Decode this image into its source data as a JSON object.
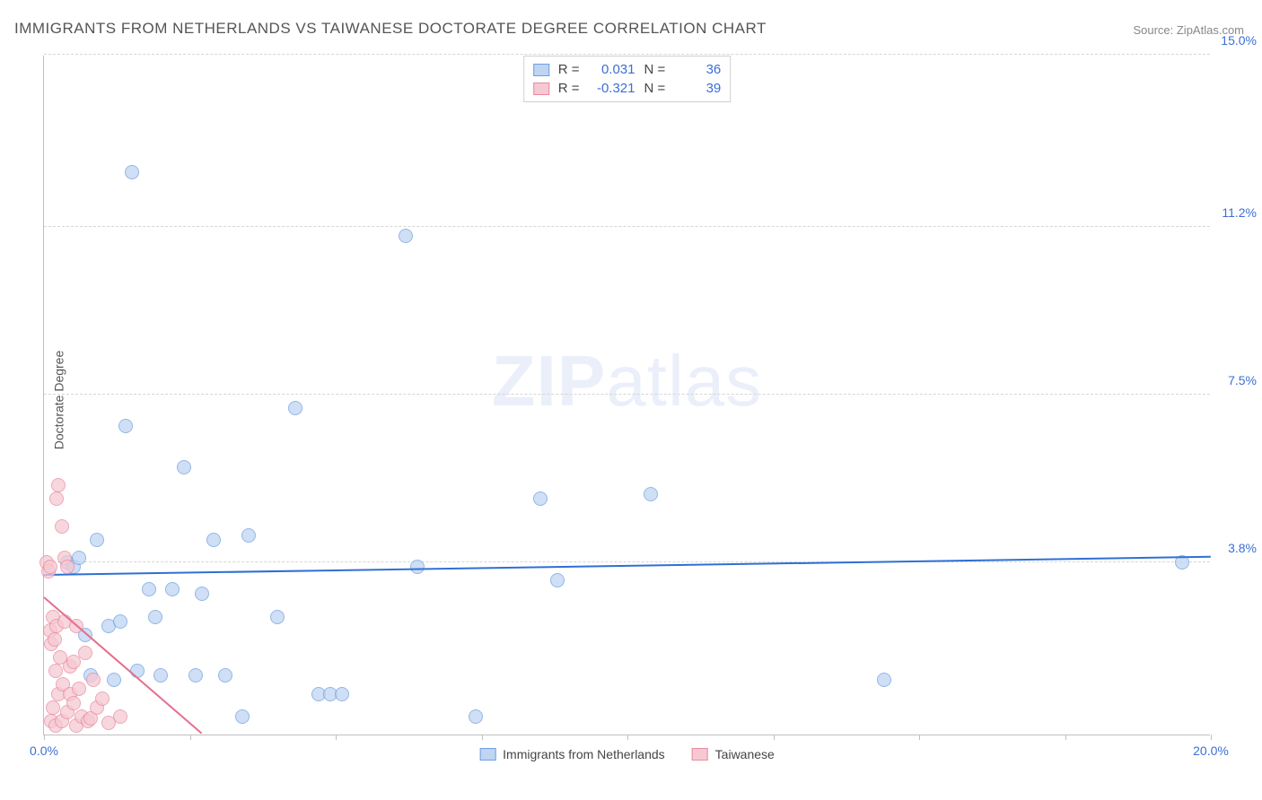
{
  "title": "IMMIGRANTS FROM NETHERLANDS VS TAIWANESE DOCTORATE DEGREE CORRELATION CHART",
  "source_label": "Source: ZipAtlas.com",
  "ylabel": "Doctorate Degree",
  "watermark_bold": "ZIP",
  "watermark_rest": "atlas",
  "chart": {
    "type": "scatter",
    "xlim": [
      0,
      20
    ],
    "ylim": [
      0,
      15
    ],
    "xtick_positions": [
      0,
      2.5,
      5,
      7.5,
      10,
      12.5,
      15,
      17.5,
      20
    ],
    "xtick_labels": {
      "0": "0.0%",
      "20": "20.0%"
    },
    "ytick_positions": [
      3.8,
      7.5,
      11.2,
      15.0
    ],
    "ytick_labels": [
      "3.8%",
      "7.5%",
      "11.2%",
      "15.0%"
    ],
    "grid_color": "#d6d6d6",
    "axis_color": "#bfbfbf",
    "background_color": "#ffffff"
  },
  "series": [
    {
      "name": "Immigrants from Netherlands",
      "fill_color": "#bfd5f2",
      "stroke_color": "#6f9fe0",
      "line_color": "#2f6fd4",
      "trend": {
        "x1": 0,
        "y1": 3.5,
        "x2": 20,
        "y2": 3.9
      },
      "R_label": "R  =",
      "R_value": "0.031",
      "N_label": "N  =",
      "N_value": "36",
      "points": [
        [
          0.4,
          3.8
        ],
        [
          0.5,
          3.7
        ],
        [
          0.6,
          3.9
        ],
        [
          0.7,
          2.2
        ],
        [
          0.8,
          1.3
        ],
        [
          0.9,
          4.3
        ],
        [
          1.1,
          2.4
        ],
        [
          1.2,
          1.2
        ],
        [
          1.3,
          2.5
        ],
        [
          1.4,
          6.8
        ],
        [
          1.5,
          12.4
        ],
        [
          1.6,
          1.4
        ],
        [
          1.8,
          3.2
        ],
        [
          1.9,
          2.6
        ],
        [
          2.0,
          1.3
        ],
        [
          2.2,
          3.2
        ],
        [
          2.4,
          5.9
        ],
        [
          2.6,
          1.3
        ],
        [
          2.7,
          3.1
        ],
        [
          2.9,
          4.3
        ],
        [
          3.1,
          1.3
        ],
        [
          3.4,
          0.4
        ],
        [
          3.5,
          4.4
        ],
        [
          4.0,
          2.6
        ],
        [
          4.3,
          7.2
        ],
        [
          4.7,
          0.9
        ],
        [
          4.9,
          0.9
        ],
        [
          5.1,
          0.9
        ],
        [
          6.2,
          11.0
        ],
        [
          6.4,
          3.7
        ],
        [
          7.4,
          0.4
        ],
        [
          8.5,
          5.2
        ],
        [
          8.8,
          3.4
        ],
        [
          10.4,
          5.3
        ],
        [
          14.4,
          1.2
        ],
        [
          19.5,
          3.8
        ]
      ]
    },
    {
      "name": "Taiwanese",
      "fill_color": "#f6c9d2",
      "stroke_color": "#e78aa0",
      "line_color": "#e56f8c",
      "trend": {
        "x1": 0,
        "y1": 3.0,
        "x2": 2.7,
        "y2": 0
      },
      "R_label": "R  =",
      "R_value": "-0.321",
      "N_label": "N  =",
      "N_value": "39",
      "points": [
        [
          0.05,
          3.8
        ],
        [
          0.08,
          3.6
        ],
        [
          0.1,
          3.7
        ],
        [
          0.1,
          2.3
        ],
        [
          0.12,
          2.0
        ],
        [
          0.13,
          0.3
        ],
        [
          0.15,
          2.6
        ],
        [
          0.15,
          0.6
        ],
        [
          0.18,
          2.1
        ],
        [
          0.2,
          0.2
        ],
        [
          0.2,
          1.4
        ],
        [
          0.22,
          2.4
        ],
        [
          0.22,
          5.2
        ],
        [
          0.25,
          5.5
        ],
        [
          0.25,
          0.9
        ],
        [
          0.28,
          1.7
        ],
        [
          0.3,
          4.6
        ],
        [
          0.3,
          0.3
        ],
        [
          0.32,
          1.1
        ],
        [
          0.35,
          3.9
        ],
        [
          0.35,
          2.5
        ],
        [
          0.4,
          3.7
        ],
        [
          0.4,
          0.5
        ],
        [
          0.45,
          0.9
        ],
        [
          0.45,
          1.5
        ],
        [
          0.5,
          1.6
        ],
        [
          0.5,
          0.7
        ],
        [
          0.55,
          2.4
        ],
        [
          0.55,
          0.2
        ],
        [
          0.6,
          1.0
        ],
        [
          0.65,
          0.4
        ],
        [
          0.7,
          1.8
        ],
        [
          0.75,
          0.3
        ],
        [
          0.8,
          0.35
        ],
        [
          0.85,
          1.2
        ],
        [
          0.9,
          0.6
        ],
        [
          1.0,
          0.8
        ],
        [
          1.1,
          0.25
        ],
        [
          1.3,
          0.4
        ]
      ]
    }
  ]
}
